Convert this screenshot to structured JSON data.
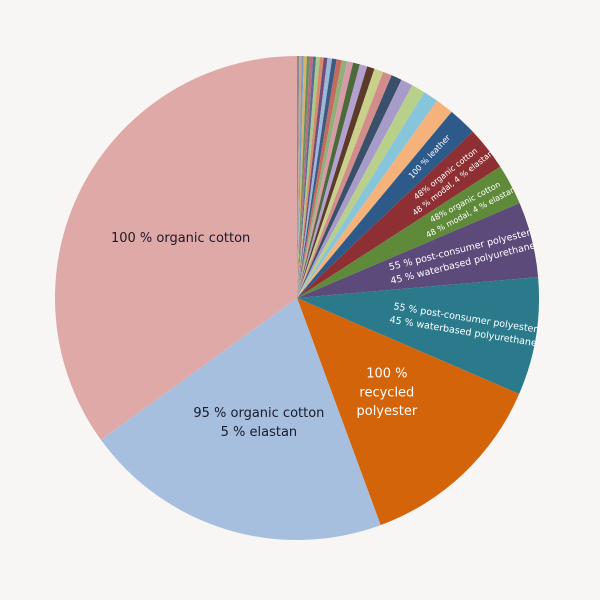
{
  "chart_data": {
    "type": "pie",
    "categories": [
      null,
      null,
      null,
      null,
      null,
      null,
      null,
      null,
      null,
      null,
      null,
      null,
      null,
      null,
      null,
      null,
      null,
      null,
      null,
      null,
      null,
      null,
      null,
      null,
      null,
      [
        "100 % leather"
      ],
      [
        "48% organic cotton",
        "48 % modal, 4 % elastan"
      ],
      [
        "48% organic cotton",
        "48 % modal, 4 % elastan"
      ],
      [
        "55 % post-consumer polyester",
        "45 % waterbased polyurethane"
      ],
      [
        "55 % post-consumer polyester",
        "45 % waterbased polyurethane"
      ],
      [
        "100 %",
        "recycled",
        "polyester"
      ],
      [
        "95 % organic cotton",
        "5 % elastan"
      ],
      [
        "100 % organic cotton"
      ]
    ],
    "values": [
      0.15,
      0.15,
      0.15,
      0.2,
      0.2,
      0.2,
      0.2,
      0.25,
      0.25,
      0.25,
      0.3,
      0.3,
      0.35,
      0.35,
      0.4,
      0.45,
      0.5,
      0.5,
      0.6,
      0.6,
      0.7,
      0.8,
      0.9,
      1.0,
      1.2,
      1.9,
      2.9,
      2.7,
      5.0,
      7.8,
      12.8,
      20.5,
      34.7
    ],
    "colors": [
      "#8b8b8b",
      "#c9a38f",
      "#7a9cc6",
      "#d4b36a",
      "#6c8f5a",
      "#b56b8a",
      "#5a6e8c",
      "#a8c98a",
      "#d88b6a",
      "#6f4e7c",
      "#9ab8d8",
      "#3d5a80",
      "#c46a5e",
      "#8fb07a",
      "#d99aa8",
      "#4c6a3a",
      "#b3a0d0",
      "#5b3a2a",
      "#c8d08a",
      "#d28c8c",
      "#3a4f6a",
      "#a79bc9",
      "#b8d08a",
      "#86c5da",
      "#f5b27a",
      "#2e5a8a",
      "#8e2f34",
      "#5f8a3a",
      "#5b4a7a",
      "#2a7a8c",
      "#d4640a",
      "#a7bfdf",
      "#dfa9a8"
    ],
    "label_colors": [
      null,
      null,
      null,
      null,
      null,
      null,
      null,
      null,
      null,
      null,
      null,
      null,
      null,
      null,
      null,
      null,
      null,
      null,
      null,
      null,
      null,
      null,
      null,
      null,
      null,
      "#ffffff",
      "#ffffff",
      "#ffffff",
      "#ffffff",
      "#ffffff",
      "#ffffff",
      "#1a1a2a",
      "#1a1a2a"
    ]
  }
}
